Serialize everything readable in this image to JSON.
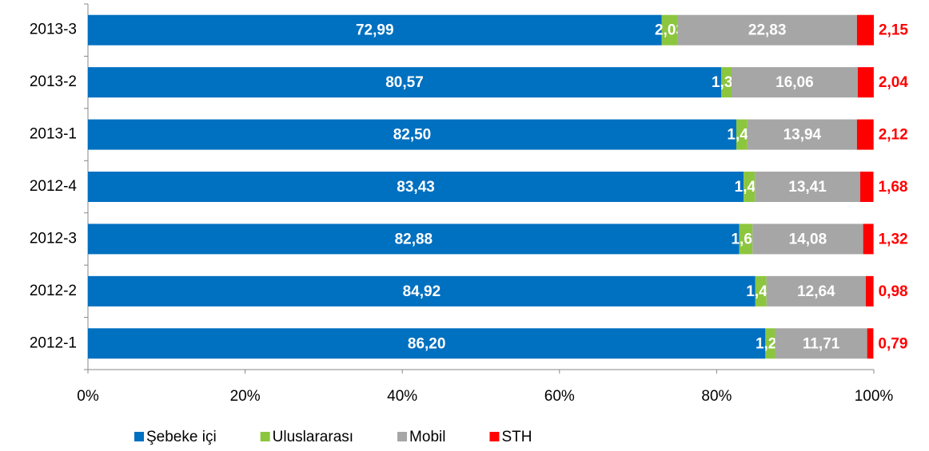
{
  "chart_data": {
    "type": "stacked_bar_horizontal",
    "categories": [
      "2013-3",
      "2013-2",
      "2013-1",
      "2012-4",
      "2012-3",
      "2012-2",
      "2012-1"
    ],
    "series": [
      {
        "name": "Şebeke içi",
        "color": "#0070c0",
        "values": [
          72.99,
          80.57,
          82.5,
          83.43,
          82.88,
          84.92,
          86.2
        ],
        "value_labels": [
          "72,99",
          "80,57",
          "82,50",
          "83,43",
          "82,88",
          "84,92",
          "86,20"
        ]
      },
      {
        "name": "Uluslararası",
        "color": "#8cc63f",
        "values": [
          2.03,
          1.32,
          1.41,
          1.43,
          1.68,
          1.42,
          1.24
        ],
        "value_labels": [
          "2,03",
          "1,32",
          "1,41",
          "1,43",
          "1,68",
          "1,42",
          "1,24"
        ]
      },
      {
        "name": "Mobil",
        "color": "#a6a6a6",
        "values": [
          22.83,
          16.06,
          13.94,
          13.41,
          14.08,
          12.64,
          11.71
        ],
        "value_labels": [
          "22,83",
          "16,06",
          "13,94",
          "13,41",
          "14,08",
          "12,64",
          "11,71"
        ]
      },
      {
        "name": "STH",
        "color": "#ff0000",
        "values": [
          2.15,
          2.04,
          2.12,
          1.68,
          1.32,
          0.98,
          0.79
        ],
        "value_labels": [
          "2,15",
          "2,04",
          "2,12",
          "1,68",
          "1,32",
          "0,98",
          "0,79"
        ]
      }
    ],
    "xlim": [
      0,
      100
    ],
    "xticks": [
      {
        "value": 0,
        "label": "0%"
      },
      {
        "value": 20,
        "label": "20%"
      },
      {
        "value": 40,
        "label": "40%"
      },
      {
        "value": 60,
        "label": "60%"
      },
      {
        "value": 80,
        "label": "80%"
      },
      {
        "value": 100,
        "label": "100%"
      }
    ],
    "legend": "bottom"
  }
}
